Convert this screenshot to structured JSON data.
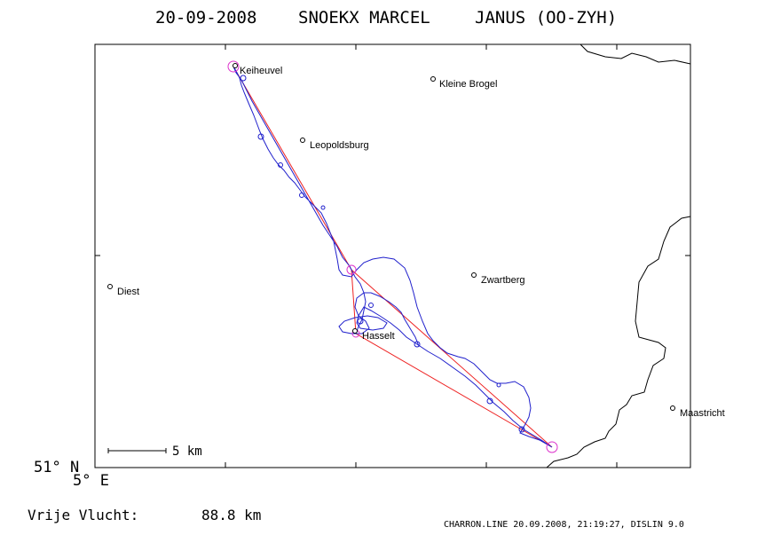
{
  "title": {
    "date": "20-09-2008",
    "pilot": "SNOEKX MARCEL",
    "glider": "JANUS (OO-ZYH)"
  },
  "map": {
    "places": [
      {
        "name": "Keiheuvel"
      },
      {
        "name": "Kleine Brogel"
      },
      {
        "name": "Leopoldsburg"
      },
      {
        "name": "Diest"
      },
      {
        "name": "Zwartberg"
      },
      {
        "name": "Hasselt"
      },
      {
        "name": "Maastricht"
      }
    ],
    "scale_bar_label": "5 km",
    "colors": {
      "track": "#2020cc",
      "task": "#ee2222",
      "turnpoint": "#dd33cc",
      "border": "#000000",
      "frame": "#000000"
    }
  },
  "latitude_label": "51° N",
  "longitude_label": "5° E",
  "distance": {
    "label": "Vrije Vlucht:",
    "value": "88.8 km"
  },
  "credit": "CHARRON.LINE 20.09.2008, 21:19:27, DISLIN 9.0"
}
